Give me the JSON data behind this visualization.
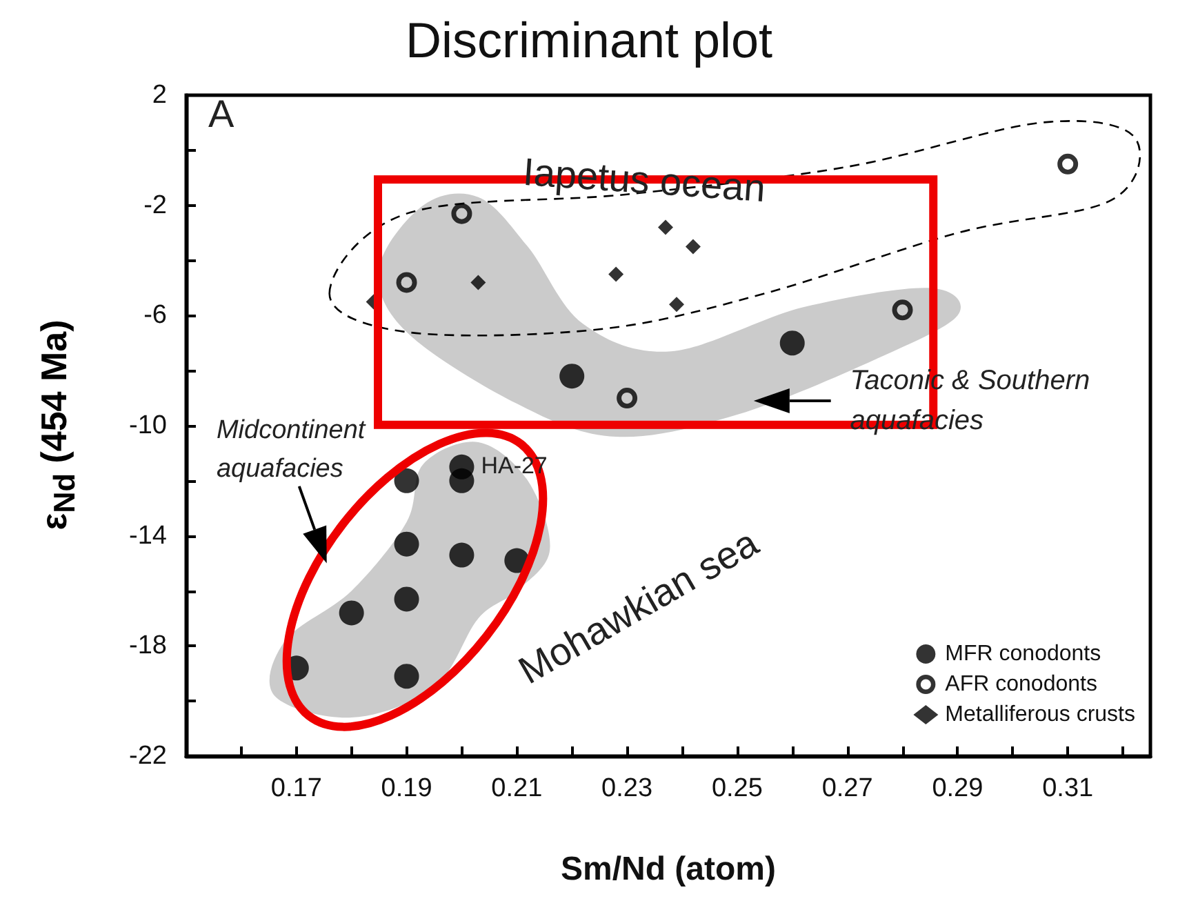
{
  "chart_data": {
    "type": "scatter",
    "title": "Discriminant plot",
    "xlabel": "Sm/Nd (atom)",
    "ylabel": "ε$_{Nd}$ (454 Ma)",
    "xlim": [
      0.15,
      0.325
    ],
    "ylim": [
      -22,
      2
    ],
    "xticks": [
      {
        "value": 0.16,
        "label": null
      },
      0.17,
      {
        "value": 0.18,
        "label": null
      },
      0.19,
      {
        "value": 0.2,
        "label": null
      },
      0.21,
      {
        "value": 0.22,
        "label": null
      },
      0.23,
      {
        "value": 0.24,
        "label": null
      },
      0.25,
      {
        "value": 0.26,
        "label": null
      },
      0.27,
      {
        "value": 0.28,
        "label": null
      },
      0.29,
      {
        "value": 0.3,
        "label": null
      },
      0.31,
      {
        "value": 0.32,
        "label": null
      }
    ],
    "yticks": [
      -22,
      {
        "value": -20,
        "label": null
      },
      -18,
      {
        "value": -16,
        "label": null
      },
      -14,
      {
        "value": -12,
        "label": null
      },
      -10,
      {
        "value": -8,
        "label": null
      },
      -6,
      {
        "value": -4,
        "label": null
      },
      -2,
      {
        "value": 0,
        "label": null
      },
      2
    ],
    "grid": false,
    "legend": "bottom right",
    "series": [
      {
        "name": "MFR conodonts",
        "color": "#000000",
        "marker": "circle",
        "x": [
          0.22,
          0.26,
          0.2,
          0.2,
          0.19,
          0.19,
          0.2,
          0.21,
          0.19,
          0.18,
          0.17,
          0.19
        ],
        "values": [
          -8.2,
          -7.0,
          -11.5,
          -12.0,
          -12.0,
          -14.3,
          -14.7,
          -14.9,
          -16.3,
          -16.8,
          -18.8,
          -19.1
        ]
      },
      {
        "name": "AFR conodonts",
        "color": "#000000",
        "marker": "open circle",
        "x": [
          0.31,
          0.2,
          0.19,
          0.28,
          0.23
        ],
        "values": [
          -0.5,
          -2.3,
          -4.8,
          -5.8,
          -9.0
        ]
      },
      {
        "name": "Metalliferous crusts",
        "color": "#000000",
        "marker": "diamond",
        "x": [
          0.184,
          0.203,
          0.228,
          0.237,
          0.242,
          0.239
        ],
        "values": [
          -5.5,
          -4.8,
          -4.5,
          -2.8,
          -3.5,
          -5.6
        ]
      }
    ],
    "annotations": [
      "A",
      "Iapetus ocean",
      "Taconic & Southern aquafacies",
      "Midcontinent aquafacies",
      "Mohawkian sea",
      {
        "text": "HA-27",
        "x": 0.2,
        "y": -11.5
      }
    ]
  }
}
